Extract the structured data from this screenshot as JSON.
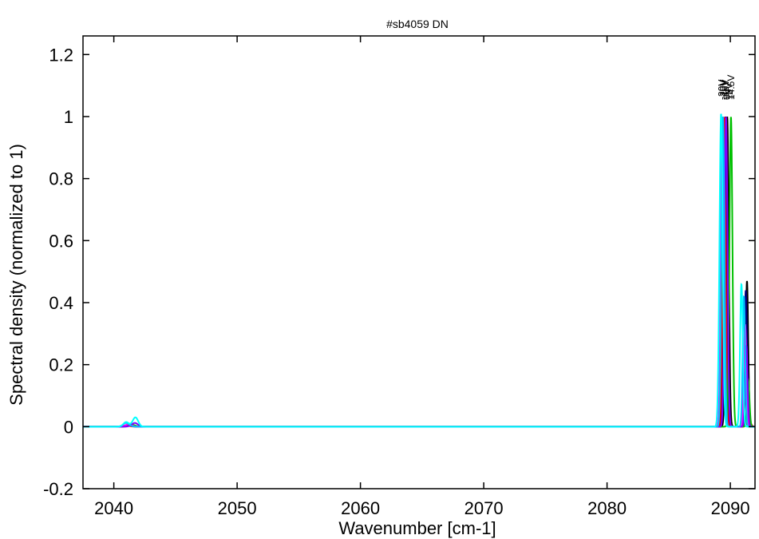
{
  "chart_data": {
    "type": "line",
    "title": "#sb4059 DN",
    "xlabel": "Wavenumber [cm-1]",
    "ylabel": "Spectral density (normalized to 1)",
    "xlim": [
      2037.5,
      2092
    ],
    "ylim": [
      -0.2,
      1.26
    ],
    "xticks": [
      2040,
      2050,
      2060,
      2070,
      2080,
      2090
    ],
    "yticks": [
      -0.2,
      0,
      0.2,
      0.4,
      0.6,
      0.8,
      1,
      1.2
    ],
    "xtick_labels": [
      "2040",
      "2050",
      "2060",
      "2070",
      "2080",
      "2090"
    ],
    "ytick_labels": [
      "-0.2",
      "0",
      "0.2",
      "0.4",
      "0.6",
      "0.8",
      "1",
      "1.2"
    ],
    "grid": false,
    "legend": "none",
    "peak_labels": [
      {
        "text": "-30V",
        "x": 2089.3
      },
      {
        "text": "-20V",
        "x": 2089.45
      },
      {
        "text": "-10V",
        "x": 2089.6
      },
      {
        "text": "0V",
        "x": 2089.75
      },
      {
        "text": "10V",
        "x": 2089.9
      },
      {
        "text": "14.5V",
        "x": 2090.05
      }
    ],
    "series": [
      {
        "color": "#000000",
        "peaks": [
          [
            2089.75,
            1.0,
            0.12
          ],
          [
            2091.35,
            0.47,
            0.1
          ],
          [
            2041.2,
            0.004,
            0.25
          ]
        ]
      },
      {
        "color": "#000080",
        "peaks": [
          [
            2089.6,
            1.0,
            0.12
          ],
          [
            2091.25,
            0.44,
            0.1
          ],
          [
            2041.3,
            0.005,
            0.25
          ]
        ]
      },
      {
        "color": "#ff0000",
        "peaks": [
          [
            2089.5,
            1.0,
            0.12
          ],
          [
            2091.5,
            0.02,
            0.15
          ],
          [
            2041.0,
            0.004,
            0.25
          ]
        ]
      },
      {
        "color": "#00c000",
        "peaks": [
          [
            2090.05,
            1.0,
            0.12
          ],
          [
            2091.45,
            0.15,
            0.1
          ],
          [
            2041.5,
            0.006,
            0.25
          ]
        ]
      },
      {
        "color": "#ff00ff",
        "peaks": [
          [
            2089.35,
            1.0,
            0.12
          ],
          [
            2091.2,
            0.33,
            0.1
          ],
          [
            2041.2,
            0.008,
            0.25
          ]
        ]
      },
      {
        "color": "#8000ff",
        "peaks": [
          [
            2089.65,
            1.0,
            0.12
          ],
          [
            2091.3,
            0.26,
            0.1
          ],
          [
            2041.7,
            0.012,
            0.25
          ]
        ]
      },
      {
        "color": "#00bfff",
        "peaks": [
          [
            2089.4,
            1.0,
            0.12
          ],
          [
            2091.1,
            0.42,
            0.1
          ],
          [
            2041.0,
            0.012,
            0.25
          ]
        ]
      },
      {
        "color": "#00ffff",
        "peaks": [
          [
            2089.25,
            1.01,
            0.13
          ],
          [
            2090.9,
            0.46,
            0.11
          ],
          [
            2041.75,
            0.03,
            0.22
          ],
          [
            2041.0,
            0.015,
            0.22
          ]
        ]
      }
    ]
  }
}
